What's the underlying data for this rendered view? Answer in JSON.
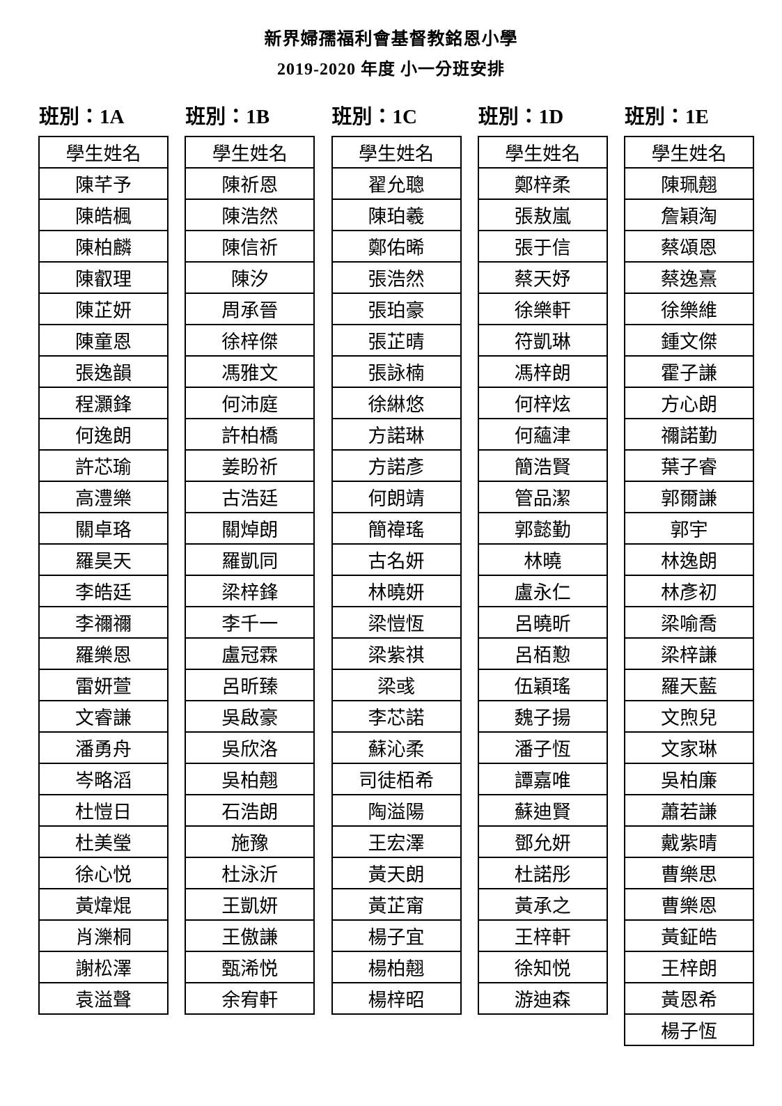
{
  "page_title": {
    "school": "新界婦孺福利會基督教銘恩小學",
    "subtitle": "2019-2020 年度  小一分班安排"
  },
  "classes": [
    {
      "label": "班別：1A",
      "name_header": "學生姓名",
      "students": [
        "陳芊予",
        "陳皓楓",
        "陳柏麟",
        "陳叡理",
        "陳芷妍",
        "陳童恩",
        "張逸韻",
        "程灝鋒",
        "何逸朗",
        "許芯瑜",
        "高澧樂",
        "關卓珞",
        "羅昊天",
        "李皓廷",
        "李禰禰",
        "羅樂恩",
        "雷妍萱",
        "文睿謙",
        "潘勇舟",
        "岑略滔",
        "杜愷日",
        "杜美瑩",
        "徐心悦",
        "黃煒焜",
        "肖濼桐",
        "謝松澤",
        "袁溢聲"
      ]
    },
    {
      "label": "班別：1B",
      "name_header": "學生姓名",
      "students": [
        "陳祈恩",
        "陳浩然",
        "陳信祈",
        "陳汐",
        "周承晉",
        "徐梓傑",
        "馮雅文",
        "何沛庭",
        "許柏橋",
        "姜盼祈",
        "古浩廷",
        "關焯朗",
        "羅凱同",
        "梁梓鋒",
        "李千一",
        "盧冠霖",
        "呂昕臻",
        "吳啟豪",
        "吳欣洛",
        "吳柏翹",
        "石浩朗",
        "施豫",
        "杜泳沂",
        "王凱妍",
        "王傲謙",
        "甄浠悦",
        "余宥軒"
      ]
    },
    {
      "label": "班別：1C",
      "name_header": "學生姓名",
      "students": [
        "翟允聰",
        "陳珀羲",
        "鄭佑晞",
        "張浩然",
        "張珀豪",
        "張芷晴",
        "張詠楠",
        "徐綝悠",
        "方諾琳",
        "方諾彥",
        "何朗靖",
        "簡禕瑤",
        "古名妍",
        "林曉妍",
        "梁愷恆",
        "梁紫祺",
        "梁彧",
        "李芯諾",
        "蘇沁柔",
        "司徒栢希",
        "陶溢陽",
        "王宏澤",
        "黃天朗",
        "黃芷甯",
        "楊子宜",
        "楊柏翹",
        "楊梓昭"
      ]
    },
    {
      "label": "班別：1D",
      "name_header": "學生姓名",
      "students": [
        "鄭梓柔",
        "張敖嵐",
        "張于信",
        "蔡天妤",
        "徐樂軒",
        "符凱琳",
        "馮梓朗",
        "何梓炫",
        "何蘊津",
        "簡浩賢",
        "管品潔",
        "郭懿勤",
        "林曉",
        "盧永仁",
        "呂曉昕",
        "呂栢懃",
        "伍穎瑤",
        "魏子揚",
        "潘子恆",
        "譚嘉唯",
        "蘇迪賢",
        "鄧允妍",
        "杜諾彤",
        "黃承之",
        "王梓軒",
        "徐知悦",
        "游迪森"
      ]
    },
    {
      "label": "班別：1E",
      "name_header": "學生姓名",
      "students": [
        "陳珮翹",
        "詹穎淘",
        "蔡頌恩",
        "蔡逸熹",
        "徐樂維",
        "鍾文傑",
        "霍子謙",
        "方心朗",
        "禰諾勤",
        "葉子睿",
        "郭爾謙",
        "郭宇",
        "林逸朗",
        "林彥初",
        "梁喻喬",
        "梁梓謙",
        "羅天藍",
        "文煦兒",
        "文家琳",
        "吳柏廉",
        "蕭若謙",
        "戴紫晴",
        "曹樂思",
        "曹樂恩",
        "黃鉦皓",
        "王梓朗",
        "黃恩希",
        "楊子恆"
      ]
    }
  ]
}
